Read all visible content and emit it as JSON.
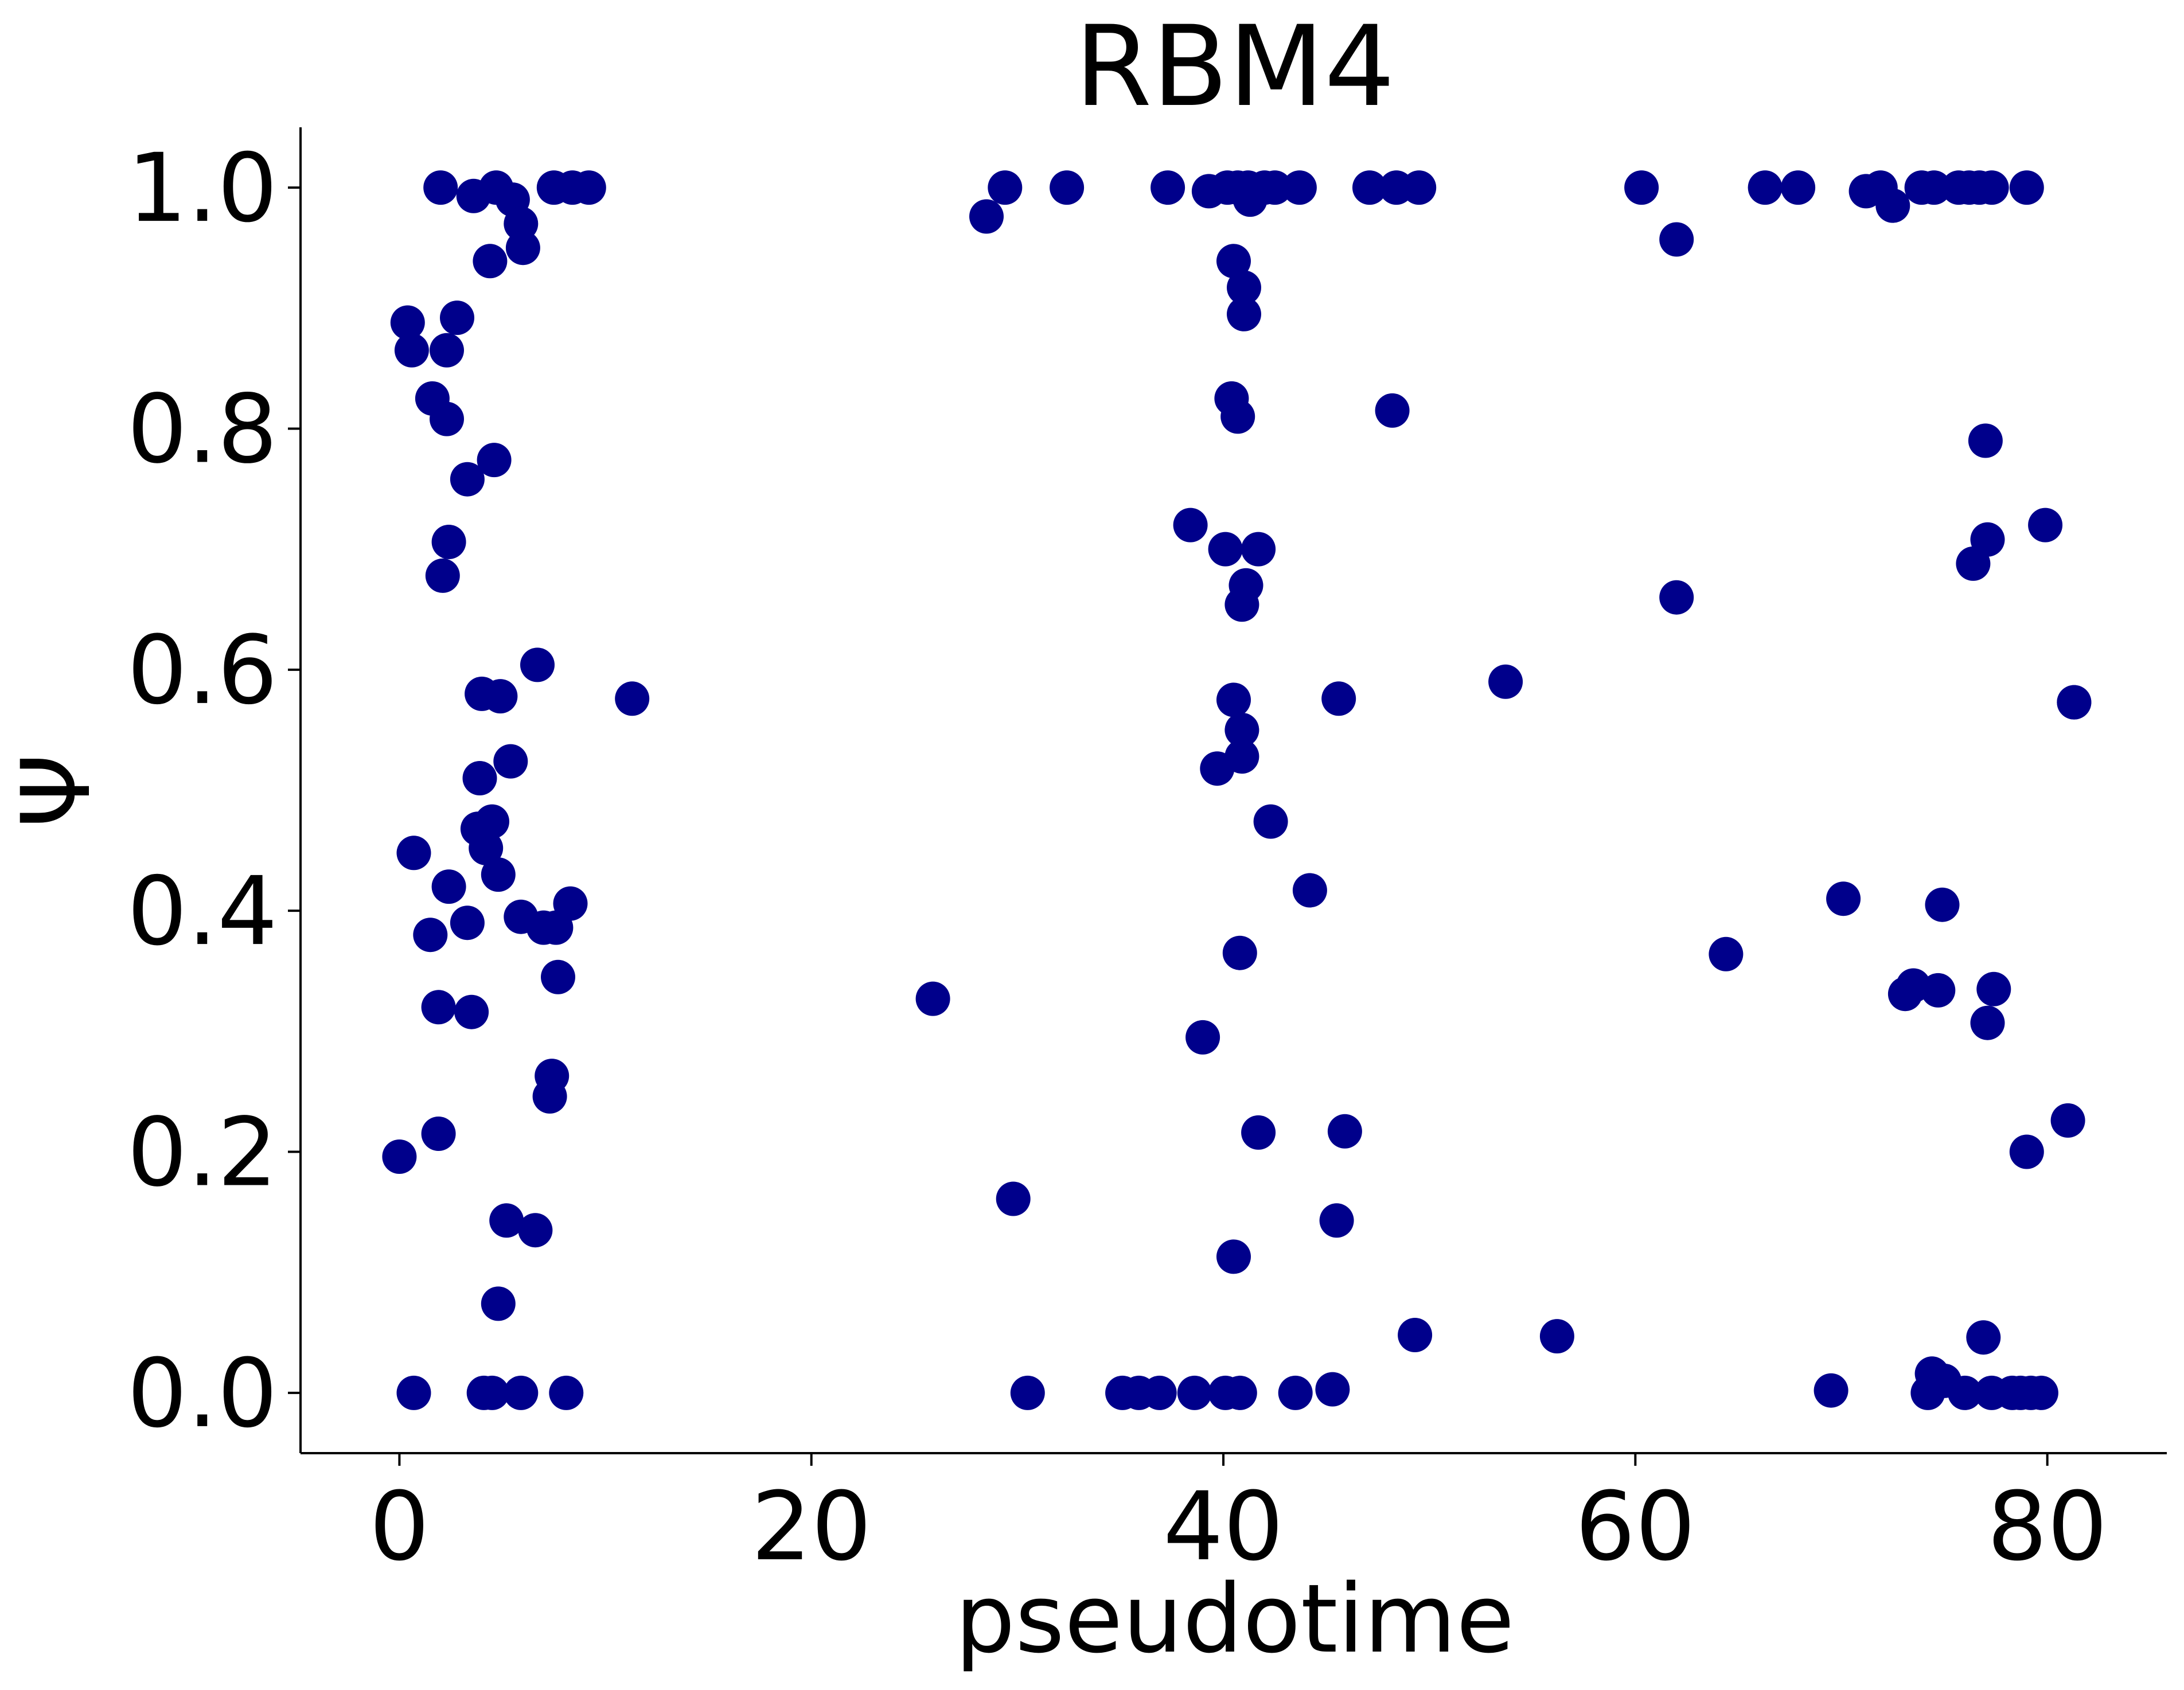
{
  "chart_data": {
    "type": "scatter",
    "title": "RBM4",
    "xlabel": "pseudotime",
    "ylabel": "Ψ",
    "xlim": [
      -4.8,
      85.8
    ],
    "ylim": [
      -0.05,
      1.05
    ],
    "xticks": [
      0,
      20,
      40,
      60,
      80
    ],
    "xtick_labels": [
      "0",
      "20",
      "40",
      "60",
      "80"
    ],
    "yticks": [
      0.0,
      0.2,
      0.4,
      0.6,
      0.8,
      1.0
    ],
    "ytick_labels": [
      "0.0",
      "0.2",
      "0.4",
      "0.6",
      "0.8",
      "1.0"
    ],
    "grid": false,
    "marker_color": "#00008b",
    "series": [
      {
        "points": [
          [
            0.0,
            0.196
          ],
          [
            0.7,
            0.0
          ],
          [
            0.7,
            0.448
          ],
          [
            0.4,
            0.888
          ],
          [
            0.6,
            0.865
          ],
          [
            1.5,
            0.38
          ],
          [
            1.6,
            0.825
          ],
          [
            1.9,
            0.32
          ],
          [
            1.9,
            0.215
          ],
          [
            2.0,
            1.0
          ],
          [
            2.3,
            0.808
          ],
          [
            2.3,
            0.865
          ],
          [
            2.1,
            0.678
          ],
          [
            2.4,
            0.706
          ],
          [
            2.4,
            0.42
          ],
          [
            2.8,
            0.892
          ],
          [
            3.3,
            0.758
          ],
          [
            3.3,
            0.39
          ],
          [
            3.5,
            0.316
          ],
          [
            3.6,
            0.993
          ],
          [
            3.8,
            0.468
          ],
          [
            3.9,
            0.51
          ],
          [
            4.0,
            0.58
          ],
          [
            4.1,
            0.0
          ],
          [
            4.2,
            0.452
          ],
          [
            4.4,
            0.939
          ],
          [
            4.5,
            0.0
          ],
          [
            4.6,
            0.774
          ],
          [
            4.5,
            0.474
          ],
          [
            4.7,
            1.0
          ],
          [
            4.8,
            0.43
          ],
          [
            4.8,
            0.074
          ],
          [
            4.9,
            0.578
          ],
          [
            5.2,
            0.143
          ],
          [
            5.4,
            0.524
          ],
          [
            5.5,
            0.99
          ],
          [
            5.9,
            0.395
          ],
          [
            5.9,
            0.0
          ],
          [
            5.9,
            0.97
          ],
          [
            6.0,
            0.95
          ],
          [
            6.6,
            0.135
          ],
          [
            6.7,
            0.604
          ],
          [
            7.0,
            0.386
          ],
          [
            7.5,
            1.0
          ],
          [
            7.4,
            0.263
          ],
          [
            7.3,
            0.246
          ],
          [
            7.6,
            0.386
          ],
          [
            7.7,
            0.345
          ],
          [
            8.1,
            0.0
          ],
          [
            8.3,
            0.406
          ],
          [
            8.4,
            1.0
          ],
          [
            9.2,
            1.0
          ],
          [
            11.3,
            0.576
          ],
          [
            25.9,
            0.327
          ],
          [
            28.5,
            0.976
          ],
          [
            29.4,
            1.0
          ],
          [
            29.8,
            0.161
          ],
          [
            30.5,
            0.0
          ],
          [
            32.4,
            1.0
          ],
          [
            35.1,
            0.0
          ],
          [
            35.9,
            0.0
          ],
          [
            36.9,
            0.0
          ],
          [
            37.3,
            1.0
          ],
          [
            38.4,
            0.72
          ],
          [
            38.6,
            0.0
          ],
          [
            39.0,
            0.295
          ],
          [
            39.3,
            0.997
          ],
          [
            39.7,
            0.518
          ],
          [
            40.1,
            0.7
          ],
          [
            40.1,
            0.0
          ],
          [
            40.2,
            1.0
          ],
          [
            40.4,
            0.825
          ],
          [
            40.5,
            0.575
          ],
          [
            40.5,
            0.113
          ],
          [
            40.5,
            0.939
          ],
          [
            40.7,
            0.81
          ],
          [
            40.7,
            1.0
          ],
          [
            40.8,
            0.365
          ],
          [
            40.8,
            0.0
          ],
          [
            40.9,
            0.55
          ],
          [
            40.9,
            0.528
          ],
          [
            40.9,
            0.654
          ],
          [
            41.0,
            0.917
          ],
          [
            41.0,
            0.895
          ],
          [
            41.1,
            0.67
          ],
          [
            41.2,
            1.0
          ],
          [
            41.3,
            0.99
          ],
          [
            41.7,
            0.216
          ],
          [
            41.7,
            0.7
          ],
          [
            42.0,
            1.0
          ],
          [
            42.3,
            0.474
          ],
          [
            42.5,
            1.0
          ],
          [
            43.5,
            0.0
          ],
          [
            43.7,
            1.0
          ],
          [
            44.2,
            0.417
          ],
          [
            45.3,
            0.003
          ],
          [
            45.5,
            0.143
          ],
          [
            45.6,
            0.576
          ],
          [
            45.9,
            0.217
          ],
          [
            47.1,
            1.0
          ],
          [
            48.2,
            0.815
          ],
          [
            48.4,
            1.0
          ],
          [
            49.3,
            0.048
          ],
          [
            49.5,
            1.0
          ],
          [
            53.7,
            0.59
          ],
          [
            56.2,
            0.047
          ],
          [
            60.3,
            1.0
          ],
          [
            62.0,
            0.957
          ],
          [
            62.0,
            0.66
          ],
          [
            64.4,
            0.364
          ],
          [
            66.3,
            1.0
          ],
          [
            67.9,
            1.0
          ],
          [
            69.5,
            0.002
          ],
          [
            70.1,
            0.41
          ],
          [
            71.2,
            0.997
          ],
          [
            71.9,
            1.0
          ],
          [
            72.5,
            0.985
          ],
          [
            73.1,
            0.331
          ],
          [
            73.5,
            0.338
          ],
          [
            73.9,
            1.0
          ],
          [
            74.2,
            0.0
          ],
          [
            74.4,
            0.016
          ],
          [
            74.5,
            1.0
          ],
          [
            74.7,
            0.334
          ],
          [
            74.9,
            0.405
          ],
          [
            75.0,
            0.01
          ],
          [
            75.7,
            1.0
          ],
          [
            76.0,
            0.0
          ],
          [
            76.2,
            1.0
          ],
          [
            76.4,
            0.688
          ],
          [
            76.7,
            1.0
          ],
          [
            76.9,
            0.046
          ],
          [
            77.0,
            0.79
          ],
          [
            77.1,
            0.708
          ],
          [
            77.1,
            0.307
          ],
          [
            77.3,
            0.0
          ],
          [
            77.3,
            1.0
          ],
          [
            77.4,
            0.335
          ],
          [
            78.3,
            0.0
          ],
          [
            78.7,
            0.0
          ],
          [
            79.0,
            0.2
          ],
          [
            79.0,
            1.0
          ],
          [
            79.2,
            0.0
          ],
          [
            79.7,
            0.0
          ],
          [
            79.9,
            0.72
          ],
          [
            81.0,
            0.226
          ],
          [
            81.3,
            0.573
          ],
          [
            81.3,
            0.573
          ]
        ]
      }
    ]
  }
}
